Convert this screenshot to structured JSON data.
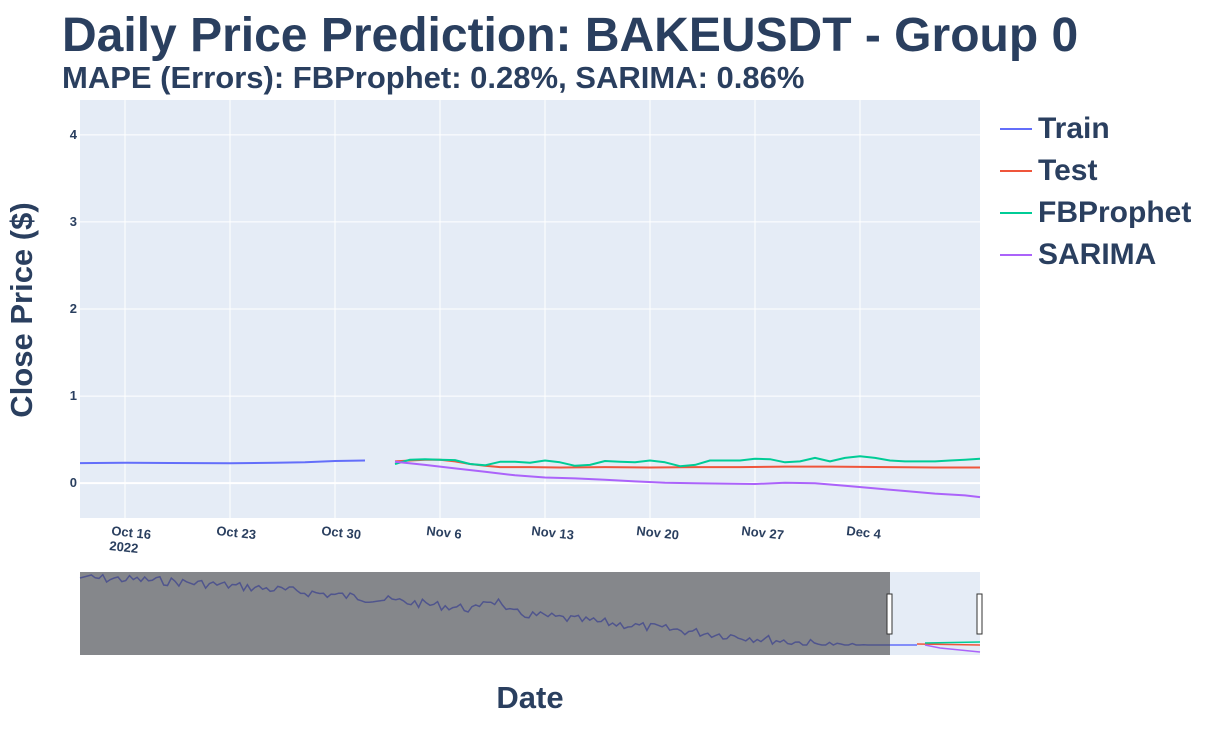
{
  "chart_data": {
    "type": "line",
    "title": "Daily Price Prediction: BAKEUSDT - Group 0",
    "subtitle": "MAPE (Errors): FBProphet: 0.28%, SARIMA: 0.86%",
    "xlabel": "Date",
    "ylabel": "Close Price ($)",
    "x_range": [
      "2022-10-13",
      "2022-12-12"
    ],
    "ylim": [
      -0.4,
      4.4
    ],
    "y_ticks": [
      0,
      1,
      2,
      3,
      4
    ],
    "x_ticks": [
      {
        "date": "2022-10-16",
        "label": "Oct 16",
        "sublabel": "2022"
      },
      {
        "date": "2022-10-23",
        "label": "Oct 23"
      },
      {
        "date": "2022-10-30",
        "label": "Oct 30"
      },
      {
        "date": "2022-11-06",
        "label": "Nov 6"
      },
      {
        "date": "2022-11-13",
        "label": "Nov 13"
      },
      {
        "date": "2022-11-20",
        "label": "Nov 20"
      },
      {
        "date": "2022-11-27",
        "label": "Nov 27"
      },
      {
        "date": "2022-12-04",
        "label": "Dec 4"
      }
    ],
    "grid": true,
    "legend_position": "right",
    "series": [
      {
        "name": "Train",
        "color": "#636efa",
        "points": [
          [
            "2022-10-13",
            0.23
          ],
          [
            "2022-10-16",
            0.235
          ],
          [
            "2022-10-19",
            0.232
          ],
          [
            "2022-10-23",
            0.228
          ],
          [
            "2022-10-26",
            0.235
          ],
          [
            "2022-10-28",
            0.24
          ],
          [
            "2022-10-30",
            0.255
          ],
          [
            "2022-11-01",
            0.26
          ]
        ]
      },
      {
        "name": "Test",
        "color": "#ef553b",
        "points": [
          [
            "2022-11-03",
            0.25
          ],
          [
            "2022-11-04",
            0.26
          ],
          [
            "2022-11-05",
            0.27
          ],
          [
            "2022-11-06",
            0.27
          ],
          [
            "2022-11-07",
            0.25
          ],
          [
            "2022-11-08",
            0.22
          ],
          [
            "2022-11-09",
            0.2
          ],
          [
            "2022-11-10",
            0.185
          ],
          [
            "2022-11-12",
            0.185
          ],
          [
            "2022-11-14",
            0.18
          ],
          [
            "2022-11-17",
            0.185
          ],
          [
            "2022-11-20",
            0.18
          ],
          [
            "2022-11-23",
            0.185
          ],
          [
            "2022-11-26",
            0.185
          ],
          [
            "2022-11-29",
            0.19
          ],
          [
            "2022-12-02",
            0.19
          ],
          [
            "2022-12-06",
            0.185
          ],
          [
            "2022-12-09",
            0.18
          ],
          [
            "2022-12-12",
            0.18
          ]
        ]
      },
      {
        "name": "FBProphet",
        "color": "#00cc96",
        "points": [
          [
            "2022-11-03",
            0.22
          ],
          [
            "2022-11-04",
            0.27
          ],
          [
            "2022-11-05",
            0.275
          ],
          [
            "2022-11-06",
            0.27
          ],
          [
            "2022-11-07",
            0.265
          ],
          [
            "2022-11-08",
            0.22
          ],
          [
            "2022-11-09",
            0.205
          ],
          [
            "2022-11-10",
            0.245
          ],
          [
            "2022-11-11",
            0.245
          ],
          [
            "2022-11-12",
            0.235
          ],
          [
            "2022-11-13",
            0.26
          ],
          [
            "2022-11-14",
            0.24
          ],
          [
            "2022-11-15",
            0.2
          ],
          [
            "2022-11-16",
            0.21
          ],
          [
            "2022-11-17",
            0.255
          ],
          [
            "2022-11-18",
            0.245
          ],
          [
            "2022-11-19",
            0.24
          ],
          [
            "2022-11-20",
            0.26
          ],
          [
            "2022-11-21",
            0.24
          ],
          [
            "2022-11-22",
            0.195
          ],
          [
            "2022-11-23",
            0.21
          ],
          [
            "2022-11-24",
            0.26
          ],
          [
            "2022-11-25",
            0.26
          ],
          [
            "2022-11-26",
            0.26
          ],
          [
            "2022-11-27",
            0.28
          ],
          [
            "2022-11-28",
            0.275
          ],
          [
            "2022-11-29",
            0.24
          ],
          [
            "2022-11-30",
            0.25
          ],
          [
            "2022-12-01",
            0.29
          ],
          [
            "2022-12-02",
            0.25
          ],
          [
            "2022-12-03",
            0.29
          ],
          [
            "2022-12-04",
            0.31
          ],
          [
            "2022-12-05",
            0.29
          ],
          [
            "2022-12-06",
            0.26
          ],
          [
            "2022-12-07",
            0.25
          ],
          [
            "2022-12-08",
            0.25
          ],
          [
            "2022-12-09",
            0.25
          ],
          [
            "2022-12-10",
            0.26
          ],
          [
            "2022-12-11",
            0.27
          ],
          [
            "2022-12-12",
            0.28
          ]
        ]
      },
      {
        "name": "SARIMA",
        "color": "#ab63fa",
        "points": [
          [
            "2022-11-03",
            0.245
          ],
          [
            "2022-11-05",
            0.21
          ],
          [
            "2022-11-07",
            0.17
          ],
          [
            "2022-11-09",
            0.13
          ],
          [
            "2022-11-11",
            0.09
          ],
          [
            "2022-11-13",
            0.065
          ],
          [
            "2022-11-15",
            0.055
          ],
          [
            "2022-11-17",
            0.04
          ],
          [
            "2022-11-19",
            0.02
          ],
          [
            "2022-11-21",
            0.005
          ],
          [
            "2022-11-23",
            0.0
          ],
          [
            "2022-11-25",
            -0.005
          ],
          [
            "2022-11-27",
            -0.01
          ],
          [
            "2022-11-29",
            0.005
          ],
          [
            "2022-12-01",
            0.0
          ],
          [
            "2022-12-03",
            -0.03
          ],
          [
            "2022-12-05",
            -0.06
          ],
          [
            "2022-12-07",
            -0.09
          ],
          [
            "2022-12-09",
            -0.12
          ],
          [
            "2022-12-11",
            -0.14
          ],
          [
            "2022-12-12",
            -0.16
          ]
        ]
      }
    ],
    "rangeslider": {
      "shaded_until_fraction": 0.9,
      "handle_positions_fraction": [
        0.9,
        1.0
      ]
    }
  }
}
